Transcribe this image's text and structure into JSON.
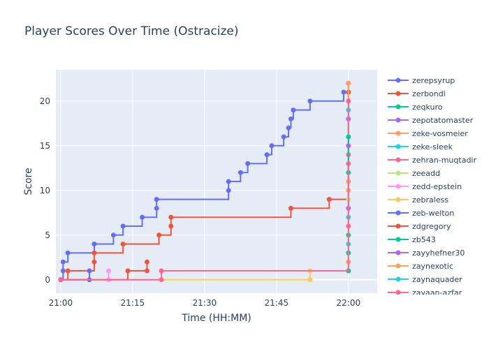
{
  "chart_data": {
    "type": "line",
    "line_shape": "step",
    "title": "Player Scores Over Time (Ostracize)",
    "xlabel": "Time (HH:MM)",
    "ylabel": "Score",
    "xlim": [
      "20:59",
      "22:06"
    ],
    "ylim": [
      -1.5,
      23.5
    ],
    "x_ticks": [
      "21:00",
      "21:15",
      "21:30",
      "21:45",
      "22:00"
    ],
    "y_ticks": [
      0,
      5,
      10,
      15,
      20
    ],
    "grid": true,
    "legend_position": "right",
    "legend_visible_count": 17,
    "series": [
      {
        "name": "zerepsyrup",
        "color": "#636efa",
        "x": [
          "21:00",
          "21:00.5",
          "21:00.5",
          "21:01.5",
          "21:07",
          "21:11",
          "21:13",
          "21:17",
          "21:20",
          "21:20",
          "21:35",
          "21:35",
          "21:37.5",
          "21:39",
          "21:43",
          "21:44",
          "21:46.5",
          "21:47.5",
          "21:48",
          "21:48.5",
          "21:52",
          "21:59",
          "22:00"
        ],
        "y": [
          0,
          1,
          2,
          3,
          4,
          5,
          6,
          7,
          8,
          9,
          10,
          11,
          12,
          13,
          14,
          15,
          16,
          17,
          18,
          19,
          20,
          21,
          22
        ]
      },
      {
        "name": "zerbondi",
        "color": "#ef553b",
        "x": [
          "21:00",
          "21:01.5",
          "21:07",
          "21:07",
          "21:13",
          "21:20.5",
          "21:23",
          "21:23",
          "21:48",
          "21:56",
          "22:00"
        ],
        "y": [
          0,
          1,
          2,
          3,
          4,
          5,
          6,
          7,
          8,
          9,
          21
        ]
      },
      {
        "name": "zeqkuro",
        "color": "#00cc96",
        "x": [
          "22:00",
          "22:00",
          "22:00"
        ],
        "y": [
          1,
          3,
          5
        ]
      },
      {
        "name": "zepotatomaster",
        "color": "#ab63fa",
        "x": [
          "22:00",
          "22:00"
        ],
        "y": [
          8,
          18
        ]
      },
      {
        "name": "zeke-vosmeier",
        "color": "#ffa15a",
        "x": [
          "22:00",
          "22:00",
          "22:00"
        ],
        "y": [
          2,
          10,
          22
        ]
      },
      {
        "name": "zeke-sleek",
        "color": "#19d3f3",
        "x": [
          "22:00",
          "22:00"
        ],
        "y": [
          7,
          19
        ]
      },
      {
        "name": "zehran-muqtadir",
        "color": "#ff6692",
        "x": [
          "22:00",
          "22:00",
          "22:00"
        ],
        "y": [
          6,
          14,
          20
        ]
      },
      {
        "name": "zeeadd",
        "color": "#b6e880",
        "x": [
          "22:00"
        ],
        "y": [
          9
        ]
      },
      {
        "name": "zedd-epstein",
        "color": "#ff97ff",
        "x": [
          "21:00",
          "21:10",
          "21:10"
        ],
        "y": [
          0,
          0,
          1
        ]
      },
      {
        "name": "zebraless",
        "color": "#fecb52",
        "x": [
          "21:00",
          "21:52",
          "21:52"
        ],
        "y": [
          0,
          0,
          1
        ]
      },
      {
        "name": "zeb-welton",
        "color": "#636efa",
        "x": [
          "21:00",
          "21:06",
          "21:06"
        ],
        "y": [
          0,
          0,
          1
        ]
      },
      {
        "name": "zdgregory",
        "color": "#ef553b",
        "x": [
          "21:00",
          "21:14",
          "21:18",
          "21:18"
        ],
        "y": [
          0,
          1,
          1,
          2
        ]
      },
      {
        "name": "zb543",
        "color": "#00cc96",
        "x": [
          "22:00",
          "22:00"
        ],
        "y": [
          12,
          16
        ]
      },
      {
        "name": "zayyhefner30",
        "color": "#ab63fa",
        "x": [
          "22:00"
        ],
        "y": [
          15
        ]
      },
      {
        "name": "zaynexotic",
        "color": "#ffa15a",
        "x": [
          "22:00"
        ],
        "y": [
          11
        ]
      },
      {
        "name": "zaynaquader",
        "color": "#19d3f3",
        "x": [
          "22:00"
        ],
        "y": [
          4
        ]
      },
      {
        "name": "zayaan-azfar",
        "color": "#ff6692",
        "x": [
          "21:00",
          "21:21",
          "21:21",
          "22:00"
        ],
        "y": [
          0,
          0,
          1,
          13
        ]
      }
    ]
  }
}
